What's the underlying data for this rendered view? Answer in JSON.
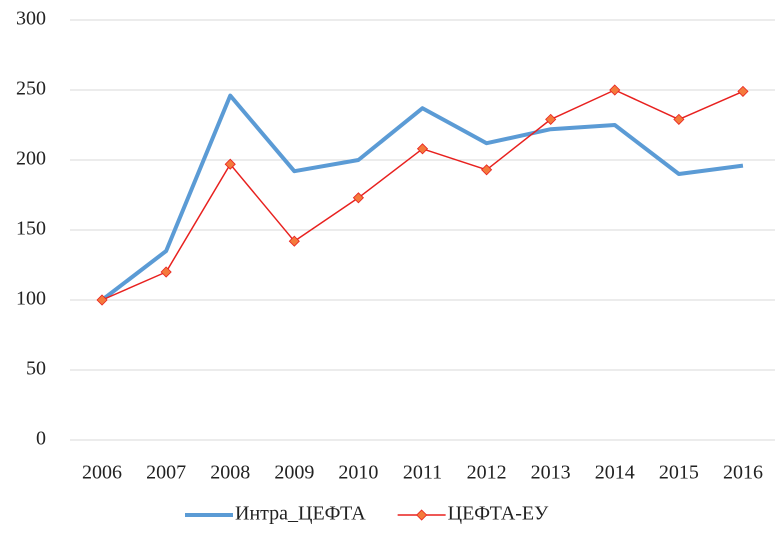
{
  "chart_data": {
    "type": "line",
    "categories": [
      "2006",
      "2007",
      "2008",
      "2009",
      "2010",
      "2011",
      "2012",
      "2013",
      "2014",
      "2015",
      "2016"
    ],
    "series": [
      {
        "name": "Интра_ЦЕФТА",
        "color": "#5b9bd5",
        "values": [
          100,
          135,
          246,
          192,
          200,
          237,
          212,
          222,
          225,
          190,
          196
        ]
      },
      {
        "name": "ЦЕФТА-ЕУ",
        "color": "#e8211f",
        "marker_color": "#f47a3c",
        "values": [
          100,
          120,
          197,
          142,
          173,
          208,
          193,
          229,
          250,
          229,
          249
        ]
      }
    ],
    "ylim": [
      0,
      300
    ],
    "yticks": [
      0,
      50,
      100,
      150,
      200,
      250,
      300
    ],
    "grid": true,
    "legend": "bottom"
  }
}
